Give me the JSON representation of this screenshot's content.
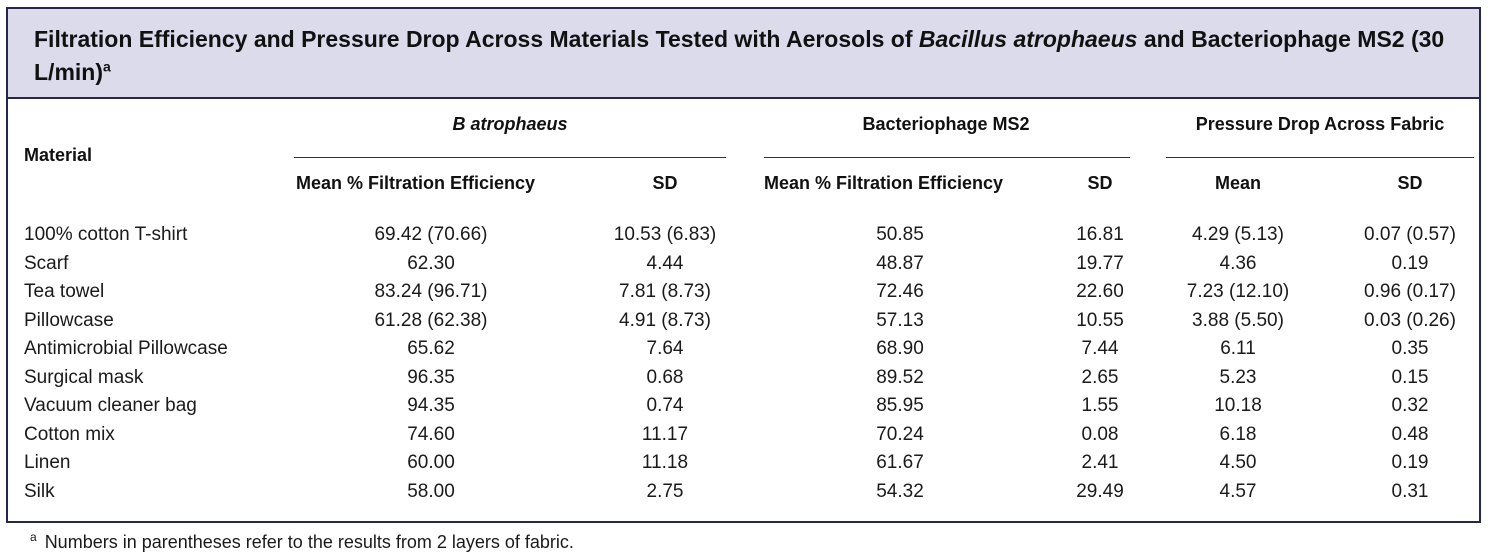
{
  "title": {
    "part1": "Filtration Efficiency and Pressure Drop Across Materials Tested with Aerosols of ",
    "italic": "Bacillus atrophaeus",
    "part2": " and Bacteriophage MS2 (30 L/min)",
    "footnote_marker": "a"
  },
  "header": {
    "material": "Material",
    "group1": "B atrophaeus",
    "group2": "Bacteriophage MS2",
    "group3": "Pressure Drop Across Fabric",
    "mean_pct": "Mean % Filtration Efficiency",
    "sd": "SD",
    "mean": "Mean"
  },
  "rows": [
    {
      "material": "100% cotton T-shirt",
      "ba_mean": "69.42 (70.66)",
      "ba_sd": "10.53 (6.83)",
      "ms2_mean": "50.85",
      "ms2_sd": "16.81",
      "pd_mean": "4.29 (5.13)",
      "pd_sd": "0.07 (0.57)"
    },
    {
      "material": "Scarf",
      "ba_mean": "62.30",
      "ba_sd": "4.44",
      "ms2_mean": "48.87",
      "ms2_sd": "19.77",
      "pd_mean": "4.36",
      "pd_sd": "0.19"
    },
    {
      "material": "Tea towel",
      "ba_mean": "83.24 (96.71)",
      "ba_sd": "7.81 (8.73)",
      "ms2_mean": "72.46",
      "ms2_sd": "22.60",
      "pd_mean": "7.23 (12.10)",
      "pd_sd": "0.96 (0.17)"
    },
    {
      "material": "Pillowcase",
      "ba_mean": "61.28 (62.38)",
      "ba_sd": "4.91 (8.73)",
      "ms2_mean": "57.13",
      "ms2_sd": "10.55",
      "pd_mean": "3.88 (5.50)",
      "pd_sd": "0.03 (0.26)"
    },
    {
      "material": "Antimicrobial Pillowcase",
      "ba_mean": "65.62",
      "ba_sd": "7.64",
      "ms2_mean": "68.90",
      "ms2_sd": "7.44",
      "pd_mean": "6.11",
      "pd_sd": "0.35"
    },
    {
      "material": "Surgical mask",
      "ba_mean": "96.35",
      "ba_sd": "0.68",
      "ms2_mean": "89.52",
      "ms2_sd": "2.65",
      "pd_mean": "5.23",
      "pd_sd": "0.15"
    },
    {
      "material": "Vacuum cleaner bag",
      "ba_mean": "94.35",
      "ba_sd": "0.74",
      "ms2_mean": "85.95",
      "ms2_sd": "1.55",
      "pd_mean": "10.18",
      "pd_sd": "0.32"
    },
    {
      "material": "Cotton mix",
      "ba_mean": "74.60",
      "ba_sd": "11.17",
      "ms2_mean": "70.24",
      "ms2_sd": "0.08",
      "pd_mean": "6.18",
      "pd_sd": "0.48"
    },
    {
      "material": "Linen",
      "ba_mean": "60.00",
      "ba_sd": "11.18",
      "ms2_mean": "61.67",
      "ms2_sd": "2.41",
      "pd_mean": "4.50",
      "pd_sd": "0.19"
    },
    {
      "material": "Silk",
      "ba_mean": "58.00",
      "ba_sd": "2.75",
      "ms2_mean": "54.32",
      "ms2_sd": "29.49",
      "pd_mean": "4.57",
      "pd_sd": "0.31"
    }
  ],
  "footnote": {
    "marker": "a",
    "text": "Numbers in parentheses refer to the results from 2 layers of fabric."
  }
}
